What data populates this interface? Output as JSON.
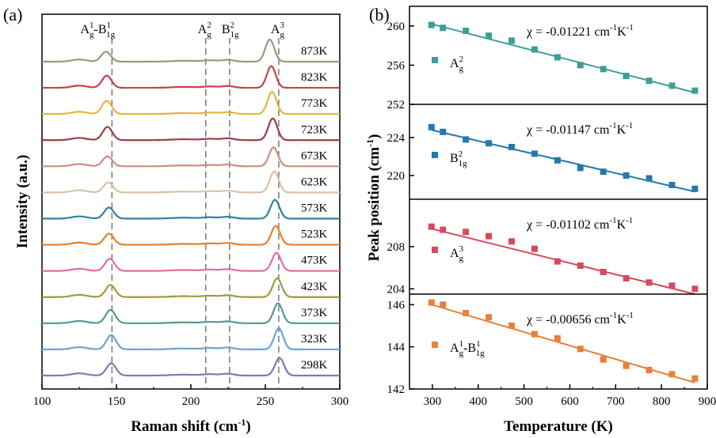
{
  "chart_data": [
    {
      "panel": "(a)",
      "type": "line",
      "xlabel": "Raman shift (cm-1)",
      "xlabel_base": "Raman shift (cm",
      "xlabel_sup": "-1",
      "xlabel_end": ")",
      "ylabel": "Intensity (a.u.)",
      "xlim": [
        100,
        300
      ],
      "xticks": [
        100,
        150,
        200,
        250,
        300
      ],
      "peak_labels": [
        {
          "base": "A",
          "sup": "1",
          "sub": "g",
          "mid": "-B",
          "sup2": "1",
          "sub2": "1g",
          "x": 146
        },
        {
          "base": "A",
          "sup": "2",
          "sub": "g",
          "x": 210
        },
        {
          "base": "B",
          "sup": "2",
          "sub": "1g",
          "x": 226
        },
        {
          "base": "A",
          "sup": "3",
          "sub": "g",
          "x": 259
        }
      ],
      "dashed_lines_x": [
        147,
        210,
        226,
        259
      ],
      "series": [
        {
          "name": "873K",
          "color": "#8f9e7c",
          "peak1": 143,
          "peak3": 253,
          "a1": 0.45,
          "a3": 1.0
        },
        {
          "name": "823K",
          "color": "#c9404a",
          "peak1": 143.5,
          "peak3": 254,
          "a1": 0.55,
          "a3": 0.98
        },
        {
          "name": "773K",
          "color": "#e6b43e",
          "peak1": 143.5,
          "peak3": 254.5,
          "a1": 0.6,
          "a3": 1.0
        },
        {
          "name": "723K",
          "color": "#9a3e45",
          "peak1": 144,
          "peak3": 255,
          "a1": 0.6,
          "a3": 0.98
        },
        {
          "name": "673K",
          "color": "#c98e7e",
          "peak1": 144,
          "peak3": 255.5,
          "a1": 0.45,
          "a3": 0.85
        },
        {
          "name": "623K",
          "color": "#d9c2a4",
          "peak1": 144.5,
          "peak3": 256,
          "a1": 0.45,
          "a3": 0.95
        },
        {
          "name": "573K",
          "color": "#2f82a0",
          "peak1": 145,
          "peak3": 256.5,
          "a1": 0.5,
          "a3": 0.85
        },
        {
          "name": "523K",
          "color": "#e57f2e",
          "peak1": 145,
          "peak3": 257,
          "a1": 0.5,
          "a3": 0.85
        },
        {
          "name": "473K",
          "color": "#e36aa8",
          "peak1": 145.5,
          "peak3": 257.5,
          "a1": 0.55,
          "a3": 0.82
        },
        {
          "name": "423K",
          "color": "#a09a3a",
          "peak1": 146,
          "peak3": 258,
          "a1": 0.55,
          "a3": 0.85
        },
        {
          "name": "373K",
          "color": "#4f9a96",
          "peak1": 146,
          "peak3": 258.5,
          "a1": 0.6,
          "a3": 0.9
        },
        {
          "name": "323K",
          "color": "#6aa3d8",
          "peak1": 146.5,
          "peak3": 259,
          "a1": 0.65,
          "a3": 0.95
        },
        {
          "name": "298K",
          "color": "#7b7ab8",
          "peak1": 146.5,
          "peak3": 259.5,
          "a1": 0.55,
          "a3": 0.8
        }
      ]
    },
    {
      "panel": "(b)",
      "type": "scatter",
      "xlabel": "Temperature (K)",
      "ylabel": "Peak position (cm-1)",
      "ylabel_base": "Peak position (cm",
      "ylabel_sup": "-1",
      "ylabel_end": ")",
      "xlim": [
        250,
        900
      ],
      "xticks": [
        300,
        400,
        500,
        600,
        700,
        800,
        900
      ],
      "x": [
        298,
        323,
        373,
        423,
        473,
        523,
        573,
        623,
        673,
        723,
        773,
        823,
        873
      ],
      "panels": [
        {
          "label": {
            "base": "A",
            "sup": "2",
            "sub": "g"
          },
          "color": "#3d9e96",
          "ylim": [
            252,
            262
          ],
          "yticks": [
            252,
            256,
            260
          ],
          "chi": "χ = -0.01221 cm",
          "values": [
            260.1,
            259.8,
            259.5,
            259.0,
            258.5,
            257.6,
            256.8,
            256.0,
            255.6,
            254.9,
            254.4,
            253.9,
            253.4
          ],
          "fit": [
            260.2,
            253.2
          ]
        },
        {
          "label": {
            "base": "B",
            "sup": "2",
            "sub": "1g"
          },
          "color": "#2778ad",
          "ylim": [
            217.5,
            227.5
          ],
          "yticks": [
            220,
            224
          ],
          "chi": "χ = -0.01147 cm",
          "values": [
            225.1,
            224.6,
            223.8,
            223.4,
            223.0,
            222.3,
            221.6,
            220.8,
            220.4,
            220.0,
            219.7,
            219.0,
            218.6
          ],
          "fit": [
            224.8,
            218.3
          ]
        },
        {
          "label": {
            "base": "A",
            "sup": "3",
            "sub": "g"
          },
          "color": "#d44a5e",
          "ylim": [
            203.5,
            212.5
          ],
          "yticks": [
            204,
            208
          ],
          "chi": "χ = -0.01102 cm",
          "values": [
            209.9,
            209.6,
            209.4,
            209.0,
            208.5,
            207.8,
            206.6,
            206.2,
            205.6,
            205.0,
            204.6,
            204.3,
            204.0
          ],
          "fit": [
            209.7,
            203.5
          ]
        },
        {
          "label": {
            "base": "A",
            "sup": "1",
            "sub": "g",
            "mid": "-B",
            "sup2": "1",
            "sub2": "1g"
          },
          "color": "#e8803a",
          "ylim": [
            142,
            146.5
          ],
          "yticks": [
            142,
            144,
            146
          ],
          "chi": "χ = -0.00656 cm",
          "values": [
            146.1,
            146.0,
            145.6,
            145.4,
            145.0,
            144.6,
            144.4,
            143.9,
            143.4,
            143.1,
            142.9,
            142.7,
            142.5
          ],
          "fit": [
            146.0,
            142.3
          ]
        }
      ],
      "chi_units_sup1": "-1",
      "chi_units_mid": "K",
      "chi_units_sup2": "-1"
    }
  ]
}
